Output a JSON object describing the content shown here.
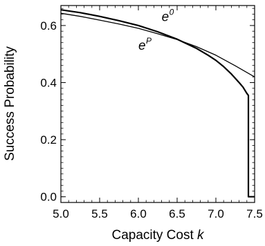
{
  "chart_data": {
    "type": "line",
    "xlabel_main": "Capacity Cost ",
    "xlabel_var": "k",
    "ylabel": "Success Probability",
    "xlim": [
      5.0,
      7.5
    ],
    "ylim": [
      -0.02,
      0.67
    ],
    "x_ticks": [
      "5.0",
      "5.5",
      "6.0",
      "6.5",
      "7.0",
      "7.5"
    ],
    "x_tick_values": [
      5.0,
      5.5,
      6.0,
      6.5,
      7.0,
      7.5
    ],
    "y_ticks": [
      "0.0",
      "0.2",
      "0.4",
      "0.6"
    ],
    "y_tick_values": [
      0.0,
      0.2,
      0.4,
      0.6
    ],
    "series": [
      {
        "name_base": "e",
        "name_sup": "0",
        "stroke": "#000000",
        "x": [
          5.0,
          5.25,
          5.5,
          5.75,
          6.0,
          6.25,
          6.5,
          6.75,
          6.9,
          7.0,
          7.1,
          7.2,
          7.3,
          7.35,
          7.4,
          7.42,
          7.42,
          7.42,
          7.5
        ],
        "y": [
          0.655,
          0.645,
          0.632,
          0.617,
          0.6,
          0.578,
          0.552,
          0.52,
          0.496,
          0.478,
          0.456,
          0.43,
          0.4,
          0.384,
          0.362,
          0.355,
          0.355,
          0.0,
          0.0
        ]
      },
      {
        "name_base": "e",
        "name_sup": "P",
        "stroke": "#000000",
        "x": [
          5.0,
          5.25,
          5.5,
          5.75,
          6.0,
          6.25,
          6.5,
          6.75,
          7.0,
          7.25,
          7.5
        ],
        "y": [
          0.643,
          0.632,
          0.619,
          0.605,
          0.59,
          0.571,
          0.551,
          0.526,
          0.496,
          0.459,
          0.42
        ]
      }
    ]
  }
}
